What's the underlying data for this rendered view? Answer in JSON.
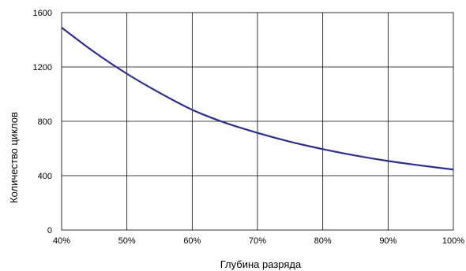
{
  "chart_data": {
    "type": "line",
    "title": "",
    "xlabel": "Глубина разряда",
    "ylabel": "Количество циклов",
    "x_ticks": [
      "40%",
      "50%",
      "60%",
      "70%",
      "80%",
      "90%",
      "100%"
    ],
    "y_ticks": [
      "0",
      "400",
      "800",
      "1200",
      "1600"
    ],
    "xlim": [
      40,
      100
    ],
    "ylim": [
      0,
      1600
    ],
    "grid": true,
    "line_color": "#2e2e8a",
    "grid_color": "#000000",
    "series": [
      {
        "x": [
          40,
          45,
          50,
          55,
          60,
          65,
          70,
          75,
          80,
          85,
          90,
          95,
          100
        ],
        "y": [
          1490,
          1310,
          1150,
          1010,
          885,
          790,
          715,
          650,
          595,
          548,
          508,
          475,
          445
        ]
      }
    ]
  }
}
